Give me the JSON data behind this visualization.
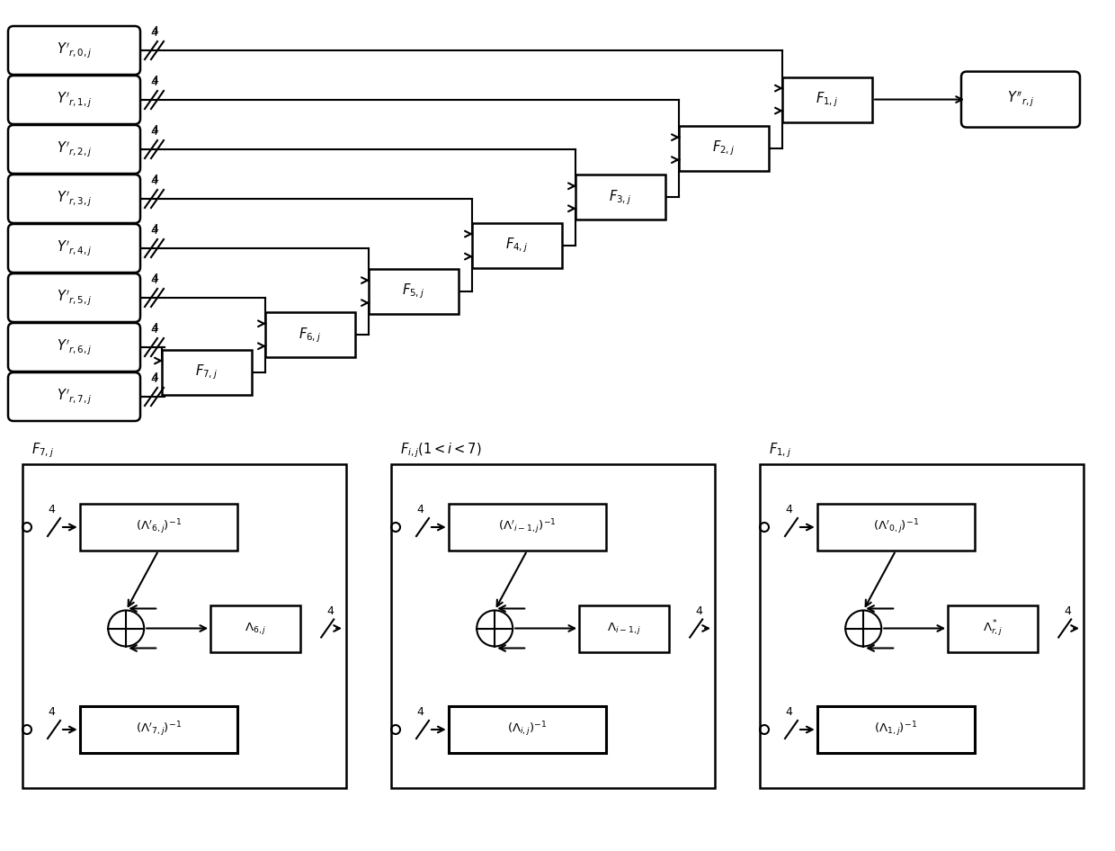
{
  "fig_width": 12.4,
  "fig_height": 9.46,
  "bg_color": "#ffffff",
  "input_labels": [
    "Y'_{r,0,j}",
    "Y'_{r,1,j}",
    "Y'_{r,2,j}",
    "Y'_{r,3,j}",
    "Y'_{r,4,j}",
    "Y'_{r,5,j}",
    "Y'_{r,6,j}",
    "Y'_{r,7,j}"
  ],
  "F_boxes_top": [
    "F_{7,j}",
    "F_{6,j}",
    "F_{5,j}",
    "F_{4,j}",
    "F_{3,j}",
    "F_{2,j}",
    "F_{1,j}"
  ],
  "output_label": "Y''_{r,j}",
  "bottom_titles": [
    "F_{7,j}",
    "F_{i,j}  (1<i<7)",
    "F_{1,j}"
  ],
  "bottom_top_box": [
    "(\\Lambda'_{6,j})^{-1}",
    "(\\Lambda'_{i-1,j})^{-1}",
    "(\\Lambda'_{0,j})^{-1}"
  ],
  "bottom_mid_box": [
    "\\Lambda_{6,j}",
    "\\Lambda_{i-1,j}",
    "\\Lambda^*_{r,j}"
  ],
  "bottom_bot_box": [
    "(\\Lambda'_{7,j})^{-1}",
    "(\\Lambda_{i,j})^{-1}",
    "(\\Lambda_{1,j})^{-1}"
  ]
}
